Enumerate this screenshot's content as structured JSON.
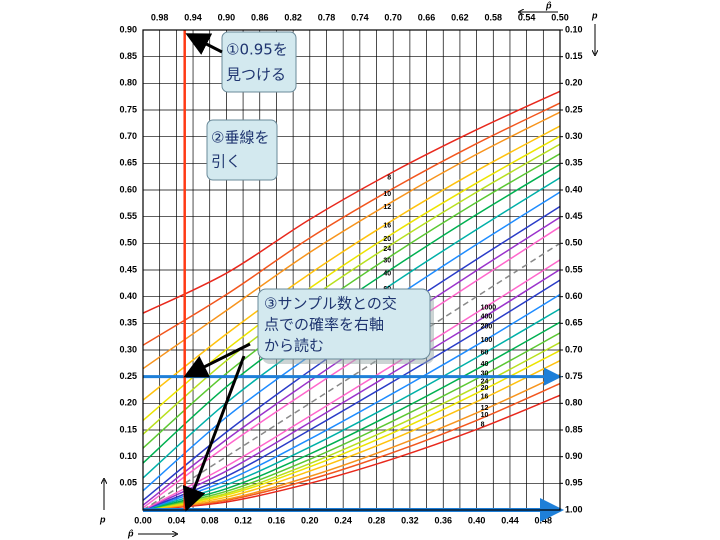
{
  "chart_data": {
    "type": "confidence-band",
    "x_label": "p̂",
    "y_label": "p",
    "x2_label": "p̂",
    "y2_label": "p",
    "xlim": [
      0,
      0.5
    ],
    "xticks": [
      {
        "value": 0,
        "label": "0.00"
      },
      0.04,
      0.08,
      0.12,
      0.16,
      {
        "value": 0.2,
        "label": "0.20"
      },
      0.24,
      0.28,
      0.32,
      0.36,
      {
        "value": 0.4,
        "label": "0.40"
      },
      0.44,
      0.48
    ],
    "x2lim": [
      1.0,
      0.5
    ],
    "x2ticks": [
      0.98,
      0.94,
      {
        "value": 0.9,
        "label": "0.90"
      },
      0.86,
      0.82,
      0.78,
      0.74,
      {
        "value": 0.7,
        "label": "0.70"
      },
      0.66,
      0.62,
      0.58,
      0.54,
      {
        "value": 0.5,
        "label": "0.50"
      }
    ],
    "ylim": [
      0,
      0.9
    ],
    "yticks": [
      0.05,
      {
        "value": 0.1,
        "label": "0.10"
      },
      0.15,
      {
        "value": 0.2,
        "label": "0.20"
      },
      0.25,
      {
        "value": 0.3,
        "label": "0.30"
      },
      0.35,
      {
        "value": 0.4,
        "label": "0.40"
      },
      0.45,
      {
        "value": 0.5,
        "label": "0.50"
      },
      0.55,
      {
        "value": 0.6,
        "label": "0.60"
      },
      0.65,
      {
        "value": 0.7,
        "label": "0.70"
      },
      0.75,
      {
        "value": 0.8,
        "label": "0.80"
      },
      0.85,
      {
        "value": 0.9,
        "label": "0.90"
      }
    ],
    "y2lim": [
      1.0,
      0.1
    ],
    "y2ticks": [
      {
        "value": 0.1,
        "label": "0.10"
      },
      0.15,
      {
        "value": 0.2,
        "label": "0.20"
      },
      0.25,
      {
        "value": 0.3,
        "label": "0.30"
      },
      0.35,
      {
        "value": 0.4,
        "label": "0.40"
      },
      0.45,
      {
        "value": 0.5,
        "label": "0.50"
      },
      0.55,
      {
        "value": 0.6,
        "label": "0.60"
      },
      0.65,
      {
        "value": 0.7,
        "label": "0.70"
      },
      0.75,
      {
        "value": 0.8,
        "label": "0.80"
      },
      0.85,
      {
        "value": 0.9,
        "label": "0.90"
      },
      0.95,
      {
        "value": 1.0,
        "label": "1.00"
      }
    ],
    "grid": true,
    "x": [
      0,
      0.1,
      0.2,
      0.3,
      0.4,
      0.5
    ],
    "series": [
      {
        "name": "8",
        "color": "#e8281c",
        "upper": [
          0.369,
          0.444,
          0.545,
          0.634,
          0.713,
          0.785
        ],
        "lower": [
          0,
          0.015,
          0.05,
          0.096,
          0.151,
          0.215
        ]
      },
      {
        "name": "10",
        "color": "#f2561e",
        "upper": [
          0.309,
          0.404,
          0.51,
          0.603,
          0.687,
          0.763
        ],
        "lower": [
          0,
          0.018,
          0.057,
          0.108,
          0.168,
          0.237
        ]
      },
      {
        "name": "12",
        "color": "#f7941d",
        "upper": [
          0.265,
          0.374,
          0.483,
          0.579,
          0.667,
          0.746
        ],
        "lower": [
          0,
          0.02,
          0.063,
          0.118,
          0.182,
          0.254
        ]
      },
      {
        "name": "16",
        "color": "#ffc20e",
        "upper": [
          0.206,
          0.33,
          0.443,
          0.544,
          0.636,
          0.72
        ],
        "lower": [
          0,
          0.024,
          0.073,
          0.133,
          0.203,
          0.28
        ]
      },
      {
        "name": "20",
        "color": "#ece400",
        "upper": [
          0.168,
          0.301,
          0.416,
          0.519,
          0.613,
          0.701
        ],
        "lower": [
          0,
          0.028,
          0.081,
          0.145,
          0.219,
          0.299
        ]
      },
      {
        "name": "24",
        "color": "#b8e01e",
        "upper": [
          0.142,
          0.28,
          0.396,
          0.5,
          0.596,
          0.686
        ],
        "lower": [
          0,
          0.031,
          0.087,
          0.155,
          0.231,
          0.314
        ]
      },
      {
        "name": "30",
        "color": "#5cc832",
        "upper": [
          0.116,
          0.256,
          0.373,
          0.479,
          0.577,
          0.668
        ],
        "lower": [
          0,
          0.035,
          0.095,
          0.167,
          0.246,
          0.332
        ]
      },
      {
        "name": "40",
        "color": "#00b050",
        "upper": [
          0.088,
          0.231,
          0.348,
          0.454,
          0.554,
          0.648
        ],
        "lower": [
          0,
          0.04,
          0.105,
          0.181,
          0.264,
          0.352
        ]
      },
      {
        "name": "60",
        "color": "#00b0a8",
        "upper": [
          0.06,
          0.201,
          0.318,
          0.425,
          0.526,
          0.623
        ],
        "lower": [
          0,
          0.047,
          0.118,
          0.199,
          0.286,
          0.377
        ]
      },
      {
        "name": "100",
        "color": "#1e8cff",
        "upper": [
          0.036,
          0.174,
          0.289,
          0.396,
          0.498,
          0.596
        ],
        "lower": [
          0,
          0.055,
          0.133,
          0.219,
          0.309,
          0.404
        ]
      },
      {
        "name": "200",
        "color": "#2a3cc8",
        "upper": [
          0.018,
          0.146,
          0.261,
          0.368,
          0.47,
          0.569
        ],
        "lower": [
          0,
          0.063,
          0.15,
          0.241,
          0.334,
          0.431
        ]
      },
      {
        "name": "400",
        "color": "#9b33cc",
        "upper": [
          0.009,
          0.132,
          0.242,
          0.347,
          0.449,
          0.549
        ],
        "lower": [
          0,
          0.073,
          0.164,
          0.258,
          0.353,
          0.451
        ]
      },
      {
        "name": "1000",
        "color": "#ff66cc",
        "upper": [
          0.004,
          0.12,
          0.226,
          0.328,
          0.43,
          0.531
        ],
        "lower": [
          0,
          0.082,
          0.176,
          0.272,
          0.37,
          0.469
        ]
      }
    ],
    "guides": {
      "x": 0.05,
      "x_color": "#ff3a14",
      "y": [
        0.25,
        0
      ],
      "y_color": "#1e7fd8"
    },
    "annotations": [
      [
        "①0.95を",
        "見つける"
      ],
      [
        "②垂線を",
        "引く"
      ],
      [
        "③サンプル数との交",
        "点での確率を右軸",
        "から読む"
      ]
    ]
  }
}
